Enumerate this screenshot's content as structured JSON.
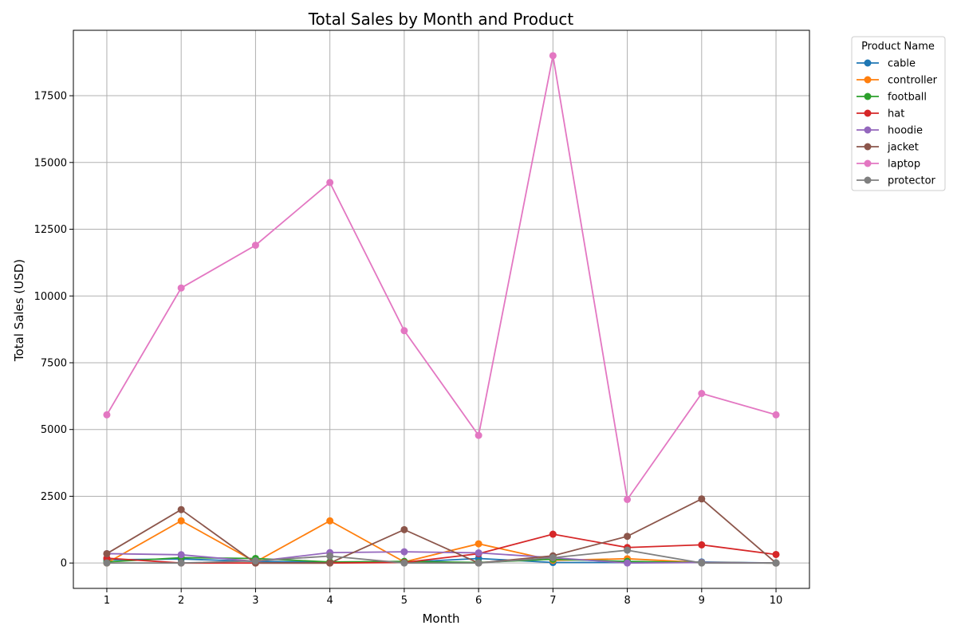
{
  "chart_data": {
    "type": "line",
    "title": "Total Sales by Month and Product",
    "xlabel": "Month",
    "ylabel": "Total Sales (USD)",
    "x": [
      1,
      2,
      3,
      4,
      5,
      6,
      7,
      8,
      9,
      10
    ],
    "xlim": [
      0.55,
      10.45
    ],
    "ylim": [
      -950,
      19950
    ],
    "yticks": [
      0,
      2500,
      5000,
      7500,
      10000,
      12500,
      15000,
      17500
    ],
    "grid": true,
    "legend_title": "Product Name",
    "legend_position": "outside-top-right",
    "series": [
      {
        "name": "cable",
        "color": "#1f77b4",
        "values": [
          120,
          150,
          60,
          30,
          30,
          170,
          20,
          20,
          40,
          0
        ]
      },
      {
        "name": "controller",
        "color": "#ff7f0e",
        "values": [
          0,
          1580,
          40,
          1580,
          40,
          720,
          100,
          160,
          20,
          0
        ]
      },
      {
        "name": "football",
        "color": "#2ca02c",
        "values": [
          40,
          200,
          170,
          40,
          60,
          20,
          140,
          60,
          20,
          0
        ]
      },
      {
        "name": "hat",
        "color": "#d62728",
        "values": [
          180,
          0,
          0,
          0,
          20,
          350,
          1080,
          580,
          680,
          320
        ]
      },
      {
        "name": "hoodie",
        "color": "#9467bd",
        "values": [
          350,
          310,
          60,
          390,
          420,
          380,
          200,
          0,
          20,
          0
        ]
      },
      {
        "name": "jacket",
        "color": "#8c564b",
        "values": [
          350,
          2000,
          0,
          0,
          1250,
          0,
          270,
          1000,
          2400,
          0
        ]
      },
      {
        "name": "laptop",
        "color": "#e377c2",
        "values": [
          5550,
          10300,
          11900,
          14250,
          8700,
          4780,
          19000,
          2380,
          6350,
          5550
        ]
      },
      {
        "name": "protector",
        "color": "#7f7f7f",
        "values": [
          0,
          0,
          80,
          260,
          0,
          0,
          200,
          480,
          0,
          0
        ]
      }
    ]
  }
}
